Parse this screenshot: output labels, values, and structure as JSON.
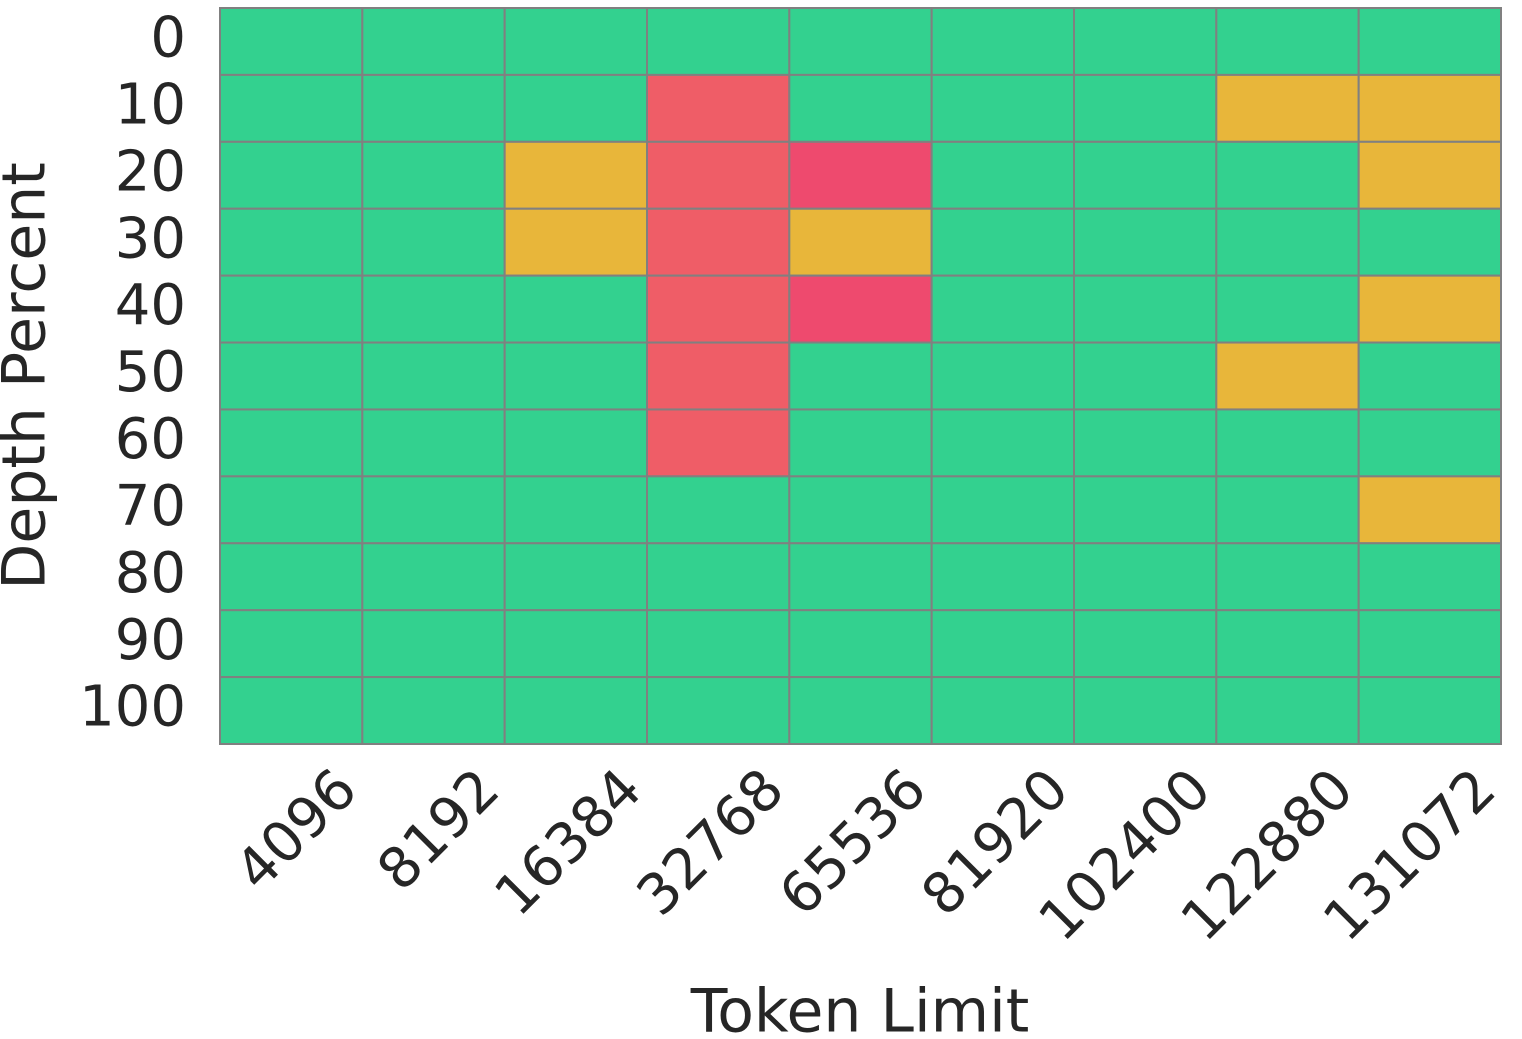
{
  "chart_data": {
    "type": "heatmap",
    "x_label": "Token Limit",
    "y_label": "Depth Percent",
    "x_categories": [
      "4096",
      "8192",
      "16384",
      "32768",
      "65536",
      "81920",
      "102400",
      "122880",
      "131072"
    ],
    "y_categories": [
      "0",
      "10",
      "20",
      "30",
      "40",
      "50",
      "60",
      "70",
      "80",
      "90",
      "100"
    ],
    "values": [
      [
        1,
        1,
        1,
        1,
        1,
        1,
        1,
        1,
        1
      ],
      [
        1,
        1,
        1,
        0.3,
        1,
        1,
        1,
        0.7,
        0.7
      ],
      [
        1,
        1,
        0.7,
        0.3,
        0.1,
        1,
        1,
        1,
        0.7
      ],
      [
        1,
        1,
        0.7,
        0.3,
        0.7,
        1,
        1,
        1,
        1
      ],
      [
        1,
        1,
        1,
        0.3,
        0.1,
        1,
        1,
        1,
        0.7
      ],
      [
        1,
        1,
        1,
        0.3,
        1,
        1,
        1,
        0.7,
        1
      ],
      [
        1,
        1,
        1,
        0.3,
        1,
        1,
        1,
        1,
        1
      ],
      [
        1,
        1,
        1,
        1,
        1,
        1,
        1,
        1,
        0.7
      ],
      [
        1,
        1,
        1,
        1,
        1,
        1,
        1,
        1,
        1
      ],
      [
        1,
        1,
        1,
        1,
        1,
        1,
        1,
        1,
        1
      ],
      [
        1,
        1,
        1,
        1,
        1,
        1,
        1,
        1,
        1
      ]
    ],
    "color_stops": [
      {
        "value": 0.1,
        "color": "#ee4a6e"
      },
      {
        "value": 0.3,
        "color": "#ef5d67"
      },
      {
        "value": 0.7,
        "color": "#e8b63a"
      },
      {
        "value": 1,
        "color": "#33d18f"
      }
    ],
    "cell_border_color": "#808080"
  }
}
